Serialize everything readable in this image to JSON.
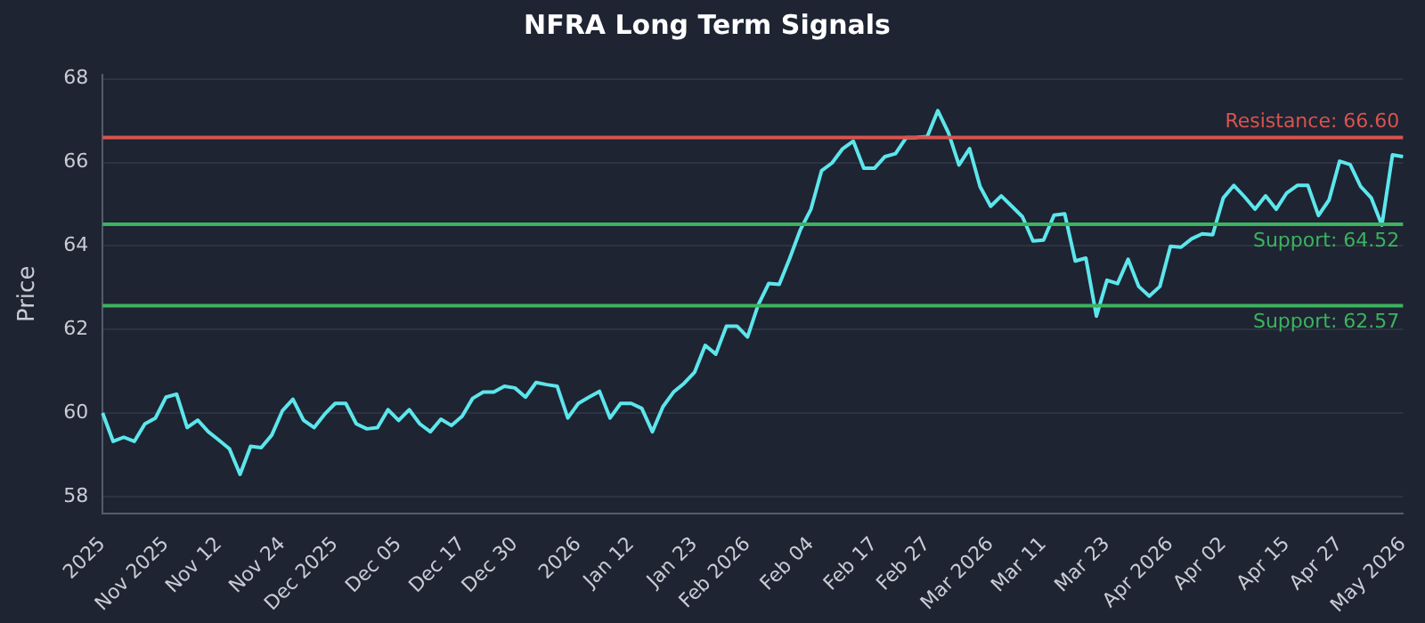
{
  "chart_data": {
    "type": "line",
    "title": "NFRA Long Term Signals",
    "ylabel": "Price",
    "categories": [
      "2025",
      null,
      null,
      null,
      null,
      null,
      "Nov 2025",
      null,
      null,
      null,
      null,
      "Nov 12",
      null,
      null,
      null,
      null,
      null,
      "Nov 24",
      null,
      null,
      null,
      null,
      "Dec 2025",
      null,
      null,
      null,
      null,
      null,
      "Dec 05",
      null,
      null,
      null,
      null,
      null,
      "Dec 17",
      null,
      null,
      null,
      null,
      "Dec 30",
      null,
      null,
      null,
      null,
      null,
      "2026",
      null,
      null,
      null,
      null,
      "Jan 12",
      null,
      null,
      null,
      null,
      null,
      "Jan 23",
      null,
      null,
      null,
      null,
      "Feb 2026",
      null,
      null,
      null,
      null,
      null,
      "Feb 04",
      null,
      null,
      null,
      null,
      null,
      "Feb 17",
      null,
      null,
      null,
      null,
      "Feb 27",
      null,
      null,
      null,
      null,
      null,
      "Mar 2026",
      null,
      null,
      null,
      null,
      "Mar 11",
      null,
      null,
      null,
      null,
      null,
      "Mar 23",
      null,
      null,
      null,
      null,
      null,
      "Apr 2026",
      null,
      null,
      null,
      null,
      "Apr 02",
      null,
      null,
      null,
      null,
      null,
      "Apr 15",
      null,
      null,
      null,
      null,
      "Apr 27",
      null,
      null,
      null,
      null,
      null,
      "May 2026"
    ],
    "series": [
      {
        "color": "#5ce6ec",
        "values": [
          60.0,
          59.32,
          59.42,
          59.32,
          59.74,
          59.88,
          60.38,
          60.45,
          59.65,
          59.83,
          59.55,
          59.35,
          59.14,
          58.53,
          59.2,
          59.17,
          59.47,
          60.05,
          60.33,
          59.83,
          59.65,
          59.97,
          60.23,
          60.23,
          59.74,
          59.62,
          59.65,
          60.08,
          59.82,
          60.08,
          59.74,
          59.55,
          59.85,
          59.7,
          59.92,
          60.35,
          60.5,
          60.5,
          60.64,
          60.6,
          60.38,
          60.73,
          60.68,
          60.64,
          59.88,
          60.23,
          60.38,
          60.52,
          59.88,
          60.23,
          60.23,
          60.11,
          59.55,
          60.15,
          60.5,
          60.71,
          60.98,
          61.62,
          61.41,
          62.08,
          62.08,
          61.82,
          62.58,
          63.1,
          63.08,
          63.71,
          64.39,
          64.88,
          65.8,
          65.99,
          66.33,
          66.51,
          65.86,
          65.86,
          66.14,
          66.21,
          66.59,
          66.6,
          66.62,
          67.24,
          66.71,
          65.94,
          66.33,
          65.42,
          64.95,
          65.2,
          64.95,
          64.7,
          64.12,
          64.14,
          64.74,
          64.77,
          63.64,
          63.71,
          62.32,
          63.18,
          63.1,
          63.68,
          63.03,
          62.8,
          63.03,
          63.99,
          63.97,
          64.17,
          64.29,
          64.27,
          65.15,
          65.45,
          65.18,
          64.88,
          65.2,
          64.88,
          65.27,
          65.45,
          65.45,
          64.73,
          65.1,
          66.03,
          65.95,
          65.42,
          65.15,
          64.5,
          66.18,
          66.14
        ]
      }
    ],
    "ylim": [
      57.6,
      68.1
    ],
    "yticks": [
      58,
      60,
      62,
      64,
      66,
      68
    ],
    "grid": "y",
    "marker": "none",
    "line_style": "solid",
    "legend": false,
    "ref_lines": [
      {
        "axis": "y",
        "value": 66.6,
        "label": "Resistance: 66.60",
        "color": "#d9534f"
      },
      {
        "axis": "y",
        "value": 64.52,
        "label": "Support: 64.52",
        "color": "#3cb35f"
      },
      {
        "axis": "y",
        "value": 62.57,
        "label": "Support: 62.57",
        "color": "#3cb35f"
      }
    ]
  }
}
